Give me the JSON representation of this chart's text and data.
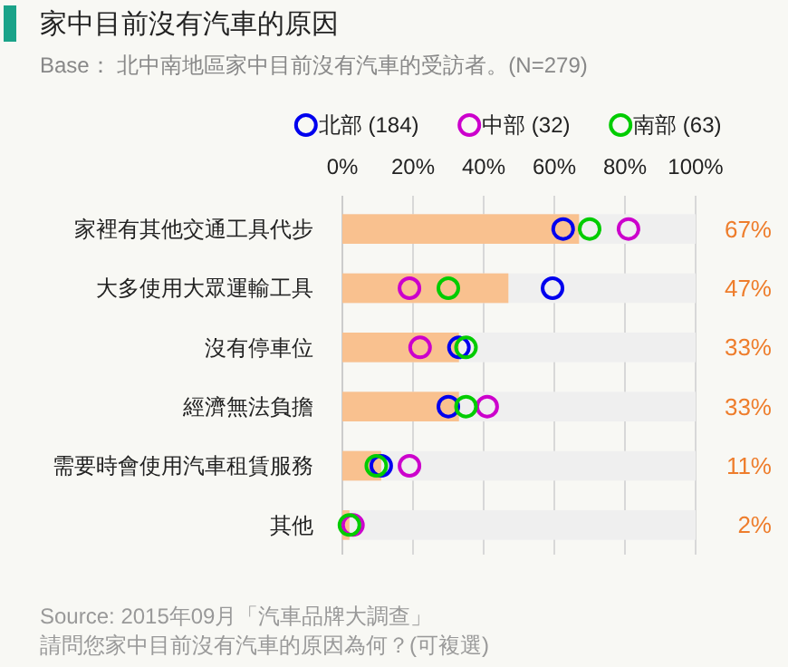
{
  "chart_data": {
    "type": "bar",
    "orientation": "horizontal",
    "title": "家中目前沒有汽車的原因",
    "subtitle": "Base： 北中南地區家中目前沒有汽車的受訪者。(N=279)",
    "categories": [
      "家裡有其他交通工具代步",
      "大多使用大眾運輸工具",
      "沒有停車位",
      "經濟無法負擔",
      "需要時會使用汽車租賃服務",
      "其他"
    ],
    "series": [
      {
        "color": "#f9c18f",
        "values": [
          67,
          47,
          33,
          33,
          11,
          2
        ],
        "value_labels": [
          "67%",
          "47%",
          "33%",
          "33%",
          "11%",
          "2%"
        ]
      },
      {
        "type": "scatter",
        "name": "北部 (184)",
        "color": "#0000ee",
        "values": [
          62.5,
          59.5,
          33,
          30,
          11,
          null
        ]
      },
      {
        "type": "scatter",
        "name": "中部 (32)",
        "color": "#cc00cc",
        "values": [
          81,
          19,
          22,
          41,
          19,
          3
        ]
      },
      {
        "type": "scatter",
        "name": "南部 (63)",
        "color": "#00cc00",
        "values": [
          70,
          30,
          35,
          35,
          9.6,
          2
        ]
      }
    ],
    "xlim": [
      0,
      100
    ],
    "xticks": [
      {
        "value": 0,
        "label": "0%"
      },
      {
        "value": 20,
        "label": "20%"
      },
      {
        "value": 40,
        "label": "40%"
      },
      {
        "value": 60,
        "label": "60%"
      },
      {
        "value": 80,
        "label": "80%"
      },
      {
        "value": 100,
        "label": "100%"
      }
    ],
    "grid": "x",
    "legend": "top",
    "marker": "circle",
    "annotations": [
      "Source: 2015年09月「汽車品牌大調查」",
      "請問您家中目前沒有汽車的原因為何？(可複選)"
    ]
  }
}
